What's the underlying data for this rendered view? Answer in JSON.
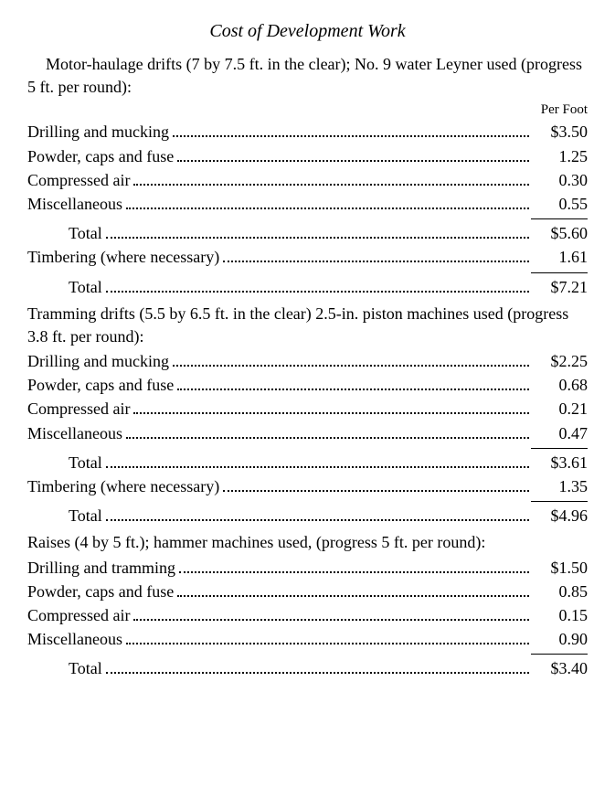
{
  "title": "Cost of Development Work",
  "colHeader": "Per Foot",
  "section1": {
    "header": "Motor-haulage drifts (7 by 7.5 ft. in the clear); No. 9 water Leyner used (progress 5 ft. per round):",
    "items": [
      {
        "label": "Drilling and mucking",
        "value": "$3.50"
      },
      {
        "label": "Powder, caps and fuse",
        "value": "1.25"
      },
      {
        "label": "Compressed air",
        "value": "0.30"
      },
      {
        "label": "Miscellaneous",
        "value": "0.55"
      }
    ],
    "subtotal1": {
      "label": "Total",
      "value": "$5.60"
    },
    "timbering": {
      "label": "Timbering (where necessary)",
      "value": "1.61"
    },
    "subtotal2": {
      "label": "Total",
      "value": "$7.21"
    }
  },
  "section2": {
    "header": "Tramming drifts (5.5 by 6.5 ft. in the clear) 2.5-in. piston machines used (progress 3.8 ft. per round):",
    "items": [
      {
        "label": "Drilling and mucking",
        "value": "$2.25"
      },
      {
        "label": "Powder, caps and fuse",
        "value": "0.68"
      },
      {
        "label": "Compressed air",
        "value": "0.21"
      },
      {
        "label": "Miscellaneous",
        "value": "0.47"
      }
    ],
    "subtotal1": {
      "label": "Total",
      "value": "$3.61"
    },
    "timbering": {
      "label": "Timbering (where necessary)",
      "value": "1.35"
    },
    "subtotal2": {
      "label": "Total",
      "value": "$4.96"
    }
  },
  "section3": {
    "header": "Raises (4 by 5 ft.); hammer machines used, (progress 5 ft. per round):",
    "items": [
      {
        "label": "Drilling and tramming",
        "value": "$1.50"
      },
      {
        "label": "Powder, caps and fuse",
        "value": "0.85"
      },
      {
        "label": "Compressed air",
        "value": "0.15"
      },
      {
        "label": "Miscellaneous",
        "value": "0.90"
      }
    ],
    "subtotal1": {
      "label": "Total",
      "value": "$3.40"
    }
  }
}
